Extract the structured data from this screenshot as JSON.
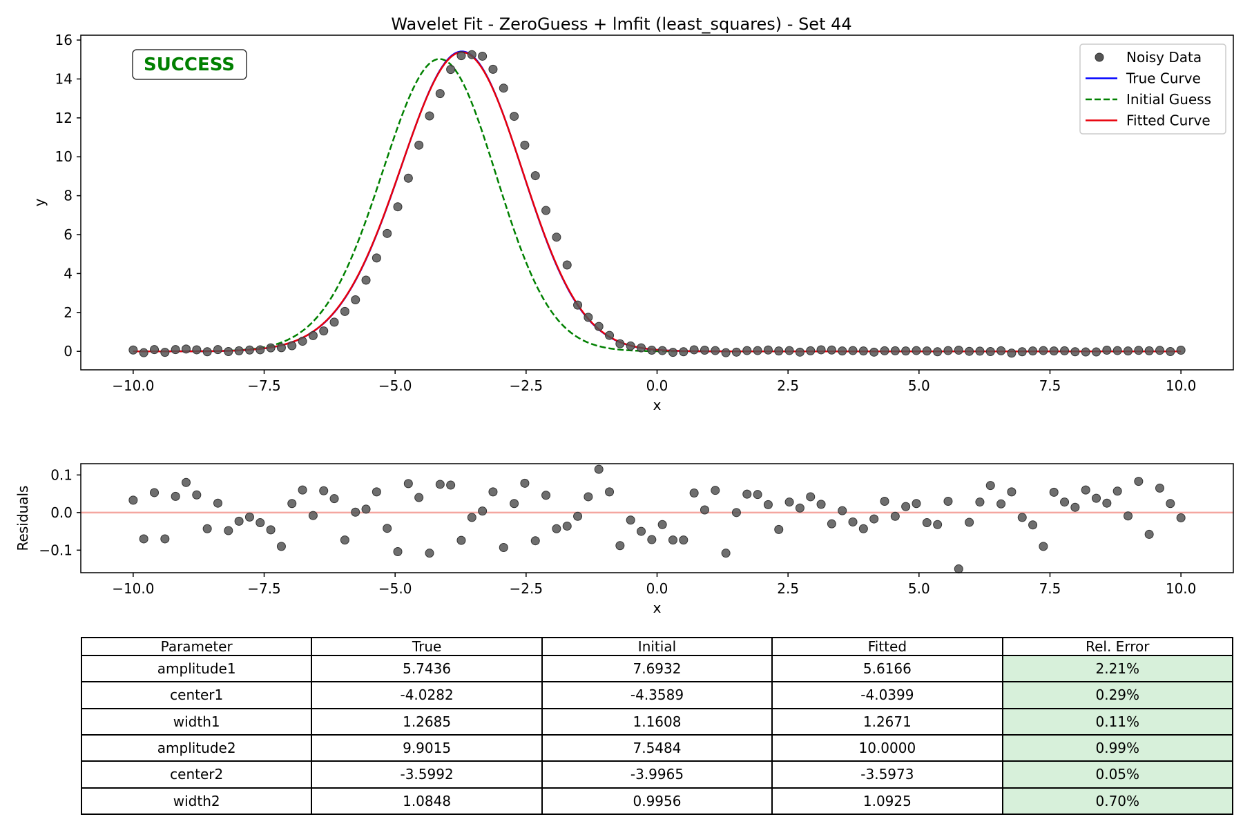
{
  "chart_data": [
    {
      "type": "line",
      "title": "Wavelet Fit - ZeroGuess + lmfit (least_squares) - Set 44",
      "xlabel": "x",
      "ylabel": "y",
      "xlim": [
        -11.0,
        11.0
      ],
      "ylim": [
        -0.95,
        16.25
      ],
      "xticks": [
        "−10.0",
        "−7.5",
        "−5.0",
        "−2.5",
        "0.0",
        "2.5",
        "5.0",
        "7.5",
        "10.0"
      ],
      "yticks": [
        "0",
        "2",
        "4",
        "6",
        "8",
        "10",
        "12",
        "14",
        "16"
      ],
      "status_label": "SUCCESS",
      "status_color": "#008000",
      "legend_position": "top-right",
      "legend": [
        "Noisy Data",
        "True Curve",
        "Initial Guess",
        "Fitted Curve"
      ],
      "series": [
        {
          "name": "Noisy Data",
          "kind": "scatter",
          "color": "#555555",
          "x_range": [
            -10,
            10
          ],
          "count": 100,
          "values": [
            0.07,
            -0.07,
            0.09,
            -0.05,
            0.09,
            0.12,
            0.08,
            -0.02,
            0.09,
            -0.01,
            0.03,
            0.07,
            0.08,
            0.18,
            0.19,
            0.29,
            0.52,
            0.81,
            1.05,
            1.5,
            2.05,
            2.65,
            3.66,
            4.8,
            6.06,
            7.43,
            8.9,
            10.6,
            12.1,
            13.25,
            14.49,
            15.2,
            15.25,
            15.17,
            14.5,
            13.53,
            12.08,
            10.6,
            9.03,
            7.24,
            5.87,
            4.44,
            2.38,
            1.75,
            1.28,
            0.82,
            0.39,
            0.28,
            0.18,
            0.06,
            0.04,
            -0.05,
            -0.02,
            0.08,
            0.06,
            0.04,
            -0.07,
            -0.04,
            0.04,
            0.04,
            0.07,
            0.02,
            0.04,
            -0.04,
            0.03,
            0.08,
            0.07,
            0.02,
            0.04,
            0.02,
            -0.04,
            0.03,
            0.03,
            0.02,
            0.04,
            0.02,
            -0.02,
            0.04,
            0.06,
            0.0,
            0.01,
            -0.01,
            0.03,
            -0.09,
            -0.02,
            0.02,
            0.04,
            0.02,
            0.03,
            -0.02,
            -0.03,
            -0.03,
            0.06,
            0.04,
            0.02,
            0.05,
            0.03,
            0.05,
            -0.01,
            0.06
          ]
        },
        {
          "name": "True Curve",
          "kind": "line",
          "color": "#0000ff",
          "dash": "solid",
          "params": {
            "amplitude1": 5.7436,
            "center1": -4.0282,
            "width1": 1.2685,
            "amplitude2": 9.9015,
            "center2": -3.5992,
            "width2": 1.0848
          }
        },
        {
          "name": "Initial Guess",
          "kind": "line",
          "color": "#008000",
          "dash": "dashed",
          "params": {
            "amplitude1": 7.6932,
            "center1": -4.3589,
            "width1": 1.1608,
            "amplitude2": 7.5484,
            "center2": -3.9965,
            "width2": 0.9956
          }
        },
        {
          "name": "Fitted Curve",
          "kind": "line",
          "color": "#e8000b",
          "dash": "solid",
          "params": {
            "amplitude1": 5.6166,
            "center1": -4.0399,
            "width1": 1.2671,
            "amplitude2": 10.0,
            "center2": -3.5973,
            "width2": 1.0925
          }
        }
      ]
    },
    {
      "type": "scatter",
      "xlabel": "x",
      "ylabel": "Residuals",
      "xlim": [
        -11.0,
        11.0
      ],
      "ylim": [
        -0.16,
        0.13
      ],
      "xticks": [
        "−10.0",
        "−7.5",
        "−5.0",
        "−2.5",
        "0.0",
        "2.5",
        "5.0",
        "7.5",
        "10.0"
      ],
      "yticks": [
        "−0.1",
        "0.0",
        "0.1"
      ],
      "zero_line_color": "#f4a6a0",
      "series": [
        {
          "name": "Residuals",
          "color": "#555555",
          "x_range": [
            -10,
            10
          ],
          "count": 100,
          "values": [
            0.033,
            -0.07,
            0.053,
            -0.07,
            0.043,
            0.08,
            0.047,
            -0.043,
            0.025,
            -0.048,
            -0.023,
            -0.012,
            -0.027,
            -0.046,
            -0.09,
            0.024,
            0.06,
            -0.008,
            0.058,
            0.037,
            -0.073,
            0.001,
            0.009,
            0.055,
            -0.042,
            -0.104,
            0.077,
            0.04,
            -0.108,
            0.075,
            0.073,
            -0.074,
            -0.013,
            0.004,
            0.055,
            -0.093,
            0.024,
            0.078,
            -0.075,
            0.046,
            -0.043,
            -0.036,
            -0.01,
            0.042,
            0.115,
            0.055,
            -0.088,
            -0.02,
            -0.05,
            -0.072,
            -0.032,
            -0.073,
            -0.073,
            0.052,
            0.007,
            0.059,
            -0.108,
            0.0,
            0.049,
            0.048,
            0.021,
            -0.045,
            0.028,
            0.012,
            0.042,
            0.022,
            -0.03,
            0.005,
            -0.025,
            -0.043,
            -0.017,
            0.03,
            -0.01,
            0.016,
            0.024,
            -0.027,
            -0.032,
            0.03,
            -0.15,
            -0.026,
            0.028,
            0.072,
            0.023,
            0.055,
            -0.013,
            -0.033,
            -0.09,
            0.054,
            0.028,
            0.014,
            0.06,
            0.038,
            0.025,
            0.057,
            -0.009,
            0.083,
            -0.058,
            0.065,
            0.024,
            -0.014
          ]
        }
      ]
    }
  ],
  "table": {
    "headers": [
      "Parameter",
      "True",
      "Initial",
      "Fitted",
      "Rel. Error"
    ],
    "rows": [
      [
        "amplitude1",
        "5.7436",
        "7.6932",
        "5.6166",
        "2.21%"
      ],
      [
        "center1",
        "-4.0282",
        "-4.3589",
        "-4.0399",
        "0.29%"
      ],
      [
        "width1",
        "1.2685",
        "1.1608",
        "1.2671",
        "0.11%"
      ],
      [
        "amplitude2",
        "9.9015",
        "7.5484",
        "10.0000",
        "0.99%"
      ],
      [
        "center2",
        "-3.5992",
        "-3.9965",
        "-3.5973",
        "0.05%"
      ],
      [
        "width2",
        "1.0848",
        "0.9956",
        "1.0925",
        "0.70%"
      ]
    ],
    "error_cell_color": "#d7f0da"
  }
}
